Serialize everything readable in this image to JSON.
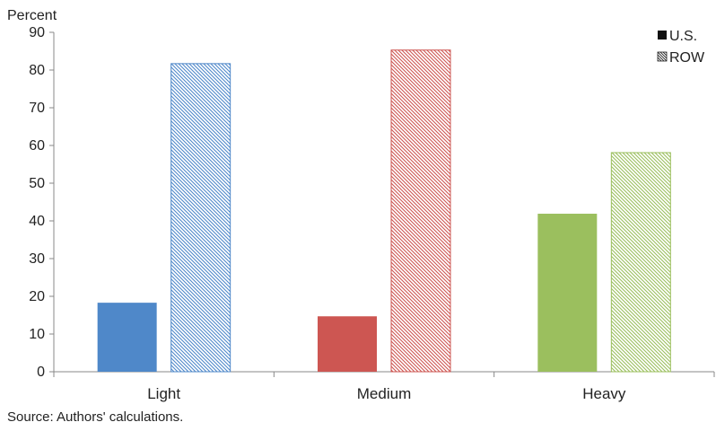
{
  "chart_data": {
    "type": "bar",
    "ylabel": "Percent",
    "ylim": [
      0,
      90
    ],
    "yticks": [
      0,
      10,
      20,
      30,
      40,
      50,
      60,
      70,
      80,
      90
    ],
    "categories": [
      "Light",
      "Medium",
      "Heavy"
    ],
    "category_colors": [
      "#4f88c9",
      "#cd5652",
      "#9bbf5e"
    ],
    "series": [
      {
        "name": "U.S.",
        "values": [
          18.3,
          14.7,
          41.9
        ],
        "fill": "solid"
      },
      {
        "name": "ROW",
        "values": [
          81.7,
          85.3,
          58.1
        ],
        "fill": "hatched"
      }
    ],
    "legend": {
      "position": "top-right"
    },
    "grid": false
  },
  "source_note": "Source: Authors' calculations."
}
